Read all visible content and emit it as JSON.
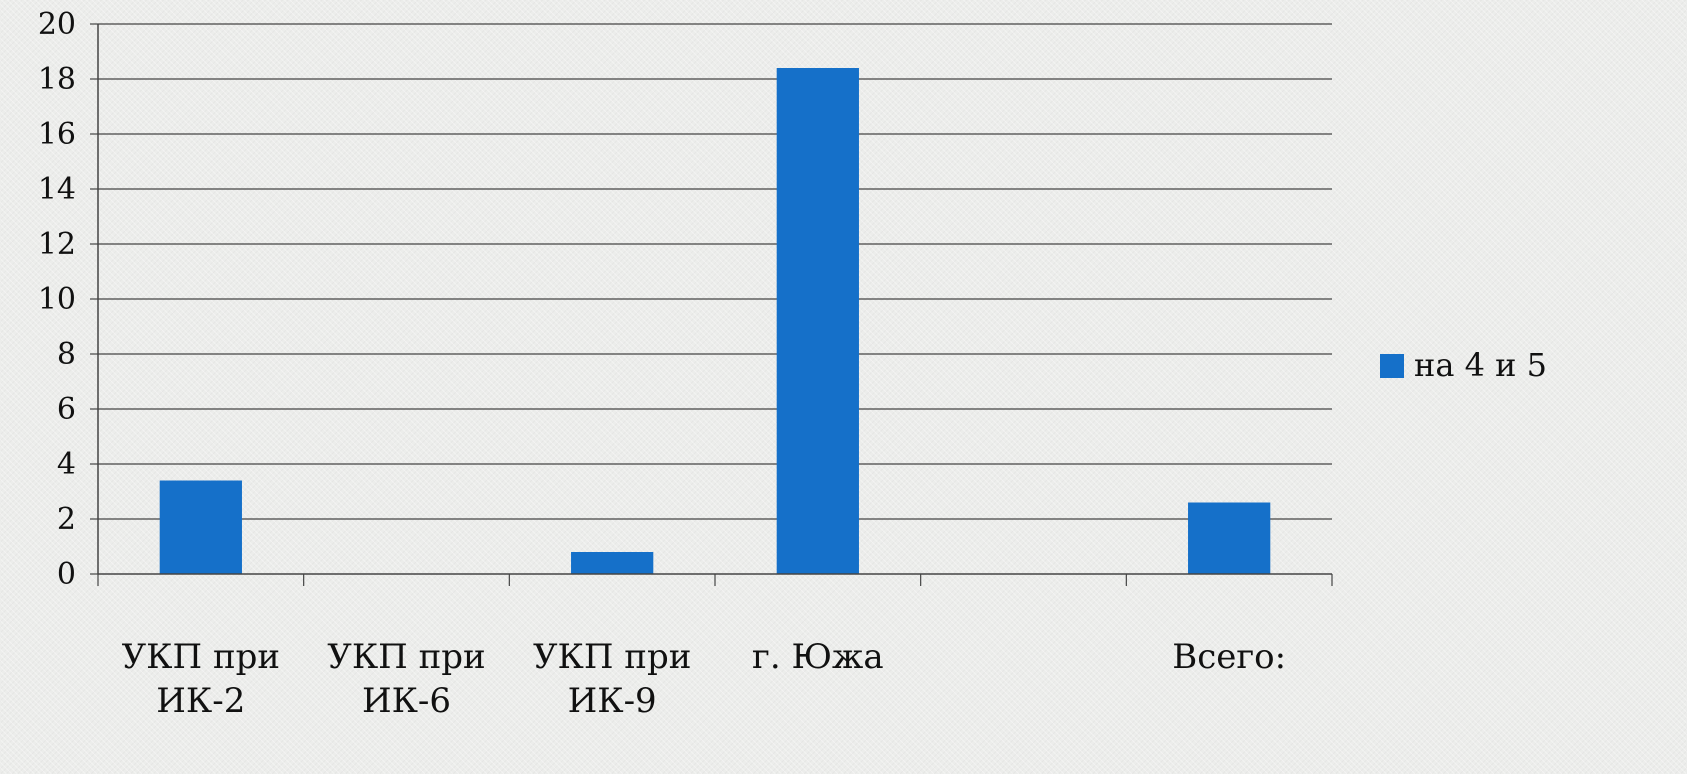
{
  "chart_data": {
    "type": "bar",
    "categories": [
      [
        "УКП при",
        "ИК-2"
      ],
      [
        "УКП при",
        "ИК-6"
      ],
      [
        "УКП при",
        "ИК-9"
      ],
      [
        "г. Южа"
      ],
      [
        ""
      ],
      [
        "Всего:"
      ]
    ],
    "series": [
      {
        "name": "на 4 и 5",
        "color": "#1570c9",
        "values": [
          3.4,
          0,
          0.8,
          18.4,
          0,
          2.6
        ]
      }
    ],
    "ylim": [
      0,
      20
    ],
    "yticks": [
      0,
      2,
      4,
      6,
      8,
      10,
      12,
      14,
      16,
      18,
      20
    ],
    "grid": true,
    "legend_position": "right"
  }
}
